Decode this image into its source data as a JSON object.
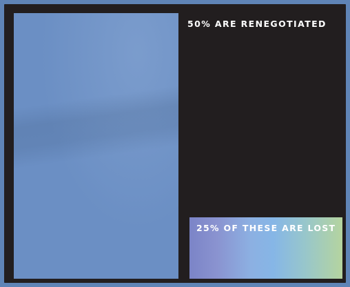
{
  "labels": {
    "renegotiated": "50% ARE RENEGOTIATED",
    "lost": "25% OF THESE ARE LOST"
  },
  "colors": {
    "outer_background": "#5f84b6",
    "frame": "#221e1f",
    "large_panel": "#6b8fc4",
    "gradient_start": "#7b84c7",
    "gradient_mid": "#86b6e6",
    "gradient_end": "#b5d49f",
    "text": "#ffffff"
  }
}
